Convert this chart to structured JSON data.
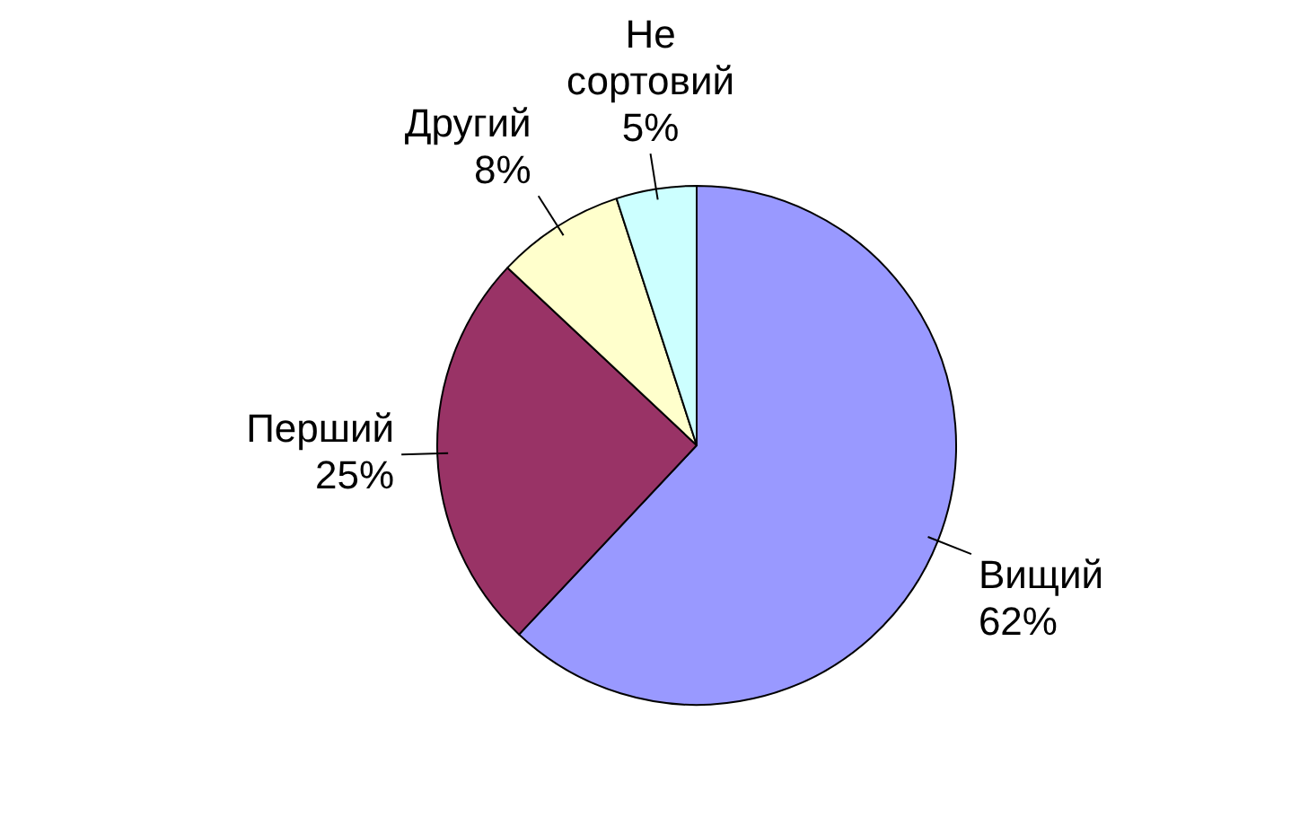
{
  "chart_data": {
    "type": "pie",
    "categories": [
      "Вищий",
      "Перший",
      "Другий",
      "Не сортовий"
    ],
    "values": [
      62,
      25,
      8,
      5
    ],
    "colors": [
      "#9999ff",
      "#993366",
      "#ffffcc",
      "#ccffff"
    ],
    "value_labels": [
      "62%",
      "25%",
      "8%",
      "5%"
    ],
    "legend": false
  }
}
